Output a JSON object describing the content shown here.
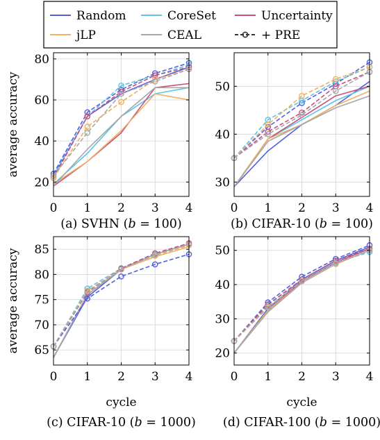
{
  "legend": {
    "entries": [
      {
        "name": "Random",
        "color": "#5060e0",
        "style": "solid"
      },
      {
        "name": "CoreSet",
        "color": "#5cc4ea",
        "style": "solid"
      },
      {
        "name": "Uncertainty",
        "color": "#c9507a",
        "style": "solid"
      },
      {
        "name": "jLP",
        "color": "#efb060",
        "style": "solid"
      },
      {
        "name": "CEAL",
        "color": "#a8a8a8",
        "style": "solid"
      },
      {
        "name": "+ PRE",
        "color": "#333333",
        "style": "dashed-marker"
      }
    ]
  },
  "chart_data": [
    {
      "id": "a",
      "type": "line",
      "caption": "(a) SVHN (b = 100)",
      "xlabel": "",
      "ylabel": "average accuracy",
      "x": [
        0,
        1,
        2,
        3,
        4
      ],
      "xlim": [
        0,
        4
      ],
      "ylim": [
        13,
        83
      ],
      "yticks": [
        20,
        40,
        60,
        80
      ],
      "series": [
        {
          "name": "Random",
          "color": "#5060e0",
          "style": "solid",
          "values": [
            23,
            52,
            63,
            70,
            76
          ]
        },
        {
          "name": "CoreSet",
          "color": "#5cc4ea",
          "style": "solid",
          "values": [
            19,
            34,
            52,
            63,
            66
          ]
        },
        {
          "name": "Uncertainty",
          "color": "#c9507a",
          "style": "solid",
          "values": [
            18,
            30,
            44,
            66,
            68
          ]
        },
        {
          "name": "jLP",
          "color": "#efb060",
          "style": "solid",
          "values": [
            19,
            30,
            45,
            63,
            60
          ]
        },
        {
          "name": "CEAL",
          "color": "#a8a8a8",
          "style": "solid",
          "values": [
            18,
            36,
            52,
            66,
            66
          ]
        },
        {
          "name": "Random + PRE",
          "color": "#5060e0",
          "style": "dashed",
          "values": [
            24,
            54,
            65,
            73,
            78
          ]
        },
        {
          "name": "CoreSet + PRE",
          "color": "#5cc4ea",
          "style": "dashed",
          "values": [
            23,
            52,
            67,
            72,
            77
          ]
        },
        {
          "name": "Uncertainty + PRE",
          "color": "#c9507a",
          "style": "dashed",
          "values": [
            22,
            52,
            64,
            72,
            76
          ]
        },
        {
          "name": "jLP + PRE",
          "color": "#efb060",
          "style": "dashed",
          "values": [
            22,
            47,
            59,
            70,
            75
          ]
        },
        {
          "name": "CEAL + PRE",
          "color": "#a8a8a8",
          "style": "dashed",
          "values": [
            23,
            44,
            63,
            69,
            75
          ]
        }
      ]
    },
    {
      "id": "b",
      "type": "line",
      "caption": "(b) CIFAR-10 (b = 100)",
      "xlabel": "",
      "ylabel": "",
      "x": [
        0,
        1,
        2,
        3,
        4
      ],
      "xlim": [
        0,
        4
      ],
      "ylim": [
        27,
        57
      ],
      "yticks": [
        30,
        40,
        50
      ],
      "series": [
        {
          "name": "Random",
          "color": "#5060e0",
          "style": "solid",
          "values": [
            29,
            36.5,
            42,
            46,
            51
          ]
        },
        {
          "name": "CoreSet",
          "color": "#5cc4ea",
          "style": "solid",
          "values": [
            29,
            39,
            43,
            47,
            50
          ]
        },
        {
          "name": "Uncertainty",
          "color": "#c9507a",
          "style": "solid",
          "values": [
            29,
            39,
            43.5,
            48,
            50
          ]
        },
        {
          "name": "jLP",
          "color": "#efb060",
          "style": "solid",
          "values": [
            29,
            39,
            42,
            46,
            49
          ]
        },
        {
          "name": "CEAL",
          "color": "#a8a8a8",
          "style": "solid",
          "values": [
            29,
            38.5,
            42,
            45.5,
            48
          ]
        },
        {
          "name": "Random + PRE",
          "color": "#5060e0",
          "style": "dashed",
          "values": [
            35,
            41.5,
            46.5,
            50.5,
            55
          ]
        },
        {
          "name": "CoreSet + PRE",
          "color": "#5cc4ea",
          "style": "dashed",
          "values": [
            35,
            43,
            47,
            51,
            54
          ]
        },
        {
          "name": "Uncertainty + PRE",
          "color": "#c9507a",
          "style": "dashed",
          "values": [
            35,
            40.5,
            44.5,
            50,
            53
          ]
        },
        {
          "name": "jLP + PRE",
          "color": "#efb060",
          "style": "dashed",
          "values": [
            35,
            42,
            48,
            51.5,
            54
          ]
        },
        {
          "name": "CEAL + PRE",
          "color": "#a8a8a8",
          "style": "dashed",
          "values": [
            35,
            40,
            44,
            49,
            53
          ]
        }
      ]
    },
    {
      "id": "c",
      "type": "line",
      "caption": "(c) CIFAR-10 (b = 1000)",
      "xlabel": "cycle",
      "ylabel": "average accuracy",
      "x": [
        0,
        1,
        2,
        3,
        4
      ],
      "xlim": [
        0,
        4
      ],
      "ylim": [
        62,
        87.5
      ],
      "yticks": [
        65,
        70,
        75,
        80,
        85
      ],
      "series": [
        {
          "name": "Random",
          "color": "#5060e0",
          "style": "solid",
          "values": [
            63.5,
            75.5,
            81,
            84,
            86
          ]
        },
        {
          "name": "CoreSet",
          "color": "#5cc4ea",
          "style": "solid",
          "values": [
            63.5,
            76,
            81,
            84,
            86
          ]
        },
        {
          "name": "Uncertainty",
          "color": "#c9507a",
          "style": "solid",
          "values": [
            63.5,
            76,
            81,
            84,
            86
          ]
        },
        {
          "name": "jLP",
          "color": "#efb060",
          "style": "solid",
          "values": [
            63.5,
            76,
            81,
            83.5,
            85.5
          ]
        },
        {
          "name": "CEAL",
          "color": "#a8a8a8",
          "style": "solid",
          "values": [
            63.5,
            76,
            81,
            84,
            86
          ]
        },
        {
          "name": "Random + PRE",
          "color": "#5060e0",
          "style": "dashed",
          "values": [
            65.7,
            75.2,
            79.6,
            82,
            84
          ]
        },
        {
          "name": "CoreSet + PRE",
          "color": "#5cc4ea",
          "style": "dashed",
          "values": [
            65.7,
            77.2,
            81.2,
            84,
            86
          ]
        },
        {
          "name": "Uncertainty + PRE",
          "color": "#c9507a",
          "style": "dashed",
          "values": [
            65.7,
            76.4,
            81.2,
            84.2,
            86.2
          ]
        },
        {
          "name": "jLP + PRE",
          "color": "#efb060",
          "style": "dashed",
          "values": [
            65.7,
            76.8,
            81,
            83.7,
            85.8
          ]
        },
        {
          "name": "CEAL + PRE",
          "color": "#a8a8a8",
          "style": "dashed",
          "values": [
            65.7,
            76.6,
            81,
            83.9,
            86
          ]
        }
      ]
    },
    {
      "id": "d",
      "type": "line",
      "caption": "(d) CIFAR-100 (b = 1000)",
      "xlabel": "cycle",
      "ylabel": "",
      "x": [
        0,
        1,
        2,
        3,
        4
      ],
      "xlim": [
        0,
        4
      ],
      "ylim": [
        16.5,
        54
      ],
      "yticks": [
        20,
        30,
        40,
        50
      ],
      "series": [
        {
          "name": "Random",
          "color": "#5060e0",
          "style": "solid",
          "values": [
            20,
            33,
            41.5,
            47,
            51
          ]
        },
        {
          "name": "CoreSet",
          "color": "#5cc4ea",
          "style": "solid",
          "values": [
            20,
            32.5,
            41,
            46.5,
            50.5
          ]
        },
        {
          "name": "Uncertainty",
          "color": "#c9507a",
          "style": "solid",
          "values": [
            20,
            32.5,
            41,
            46.5,
            50.5
          ]
        },
        {
          "name": "jLP",
          "color": "#efb060",
          "style": "solid",
          "values": [
            20,
            32.5,
            40.5,
            46,
            50
          ]
        },
        {
          "name": "CEAL",
          "color": "#a8a8a8",
          "style": "solid",
          "values": [
            20,
            32,
            40.5,
            46,
            50
          ]
        },
        {
          "name": "Random + PRE",
          "color": "#5060e0",
          "style": "dashed",
          "values": [
            23.5,
            34.8,
            42.3,
            47.5,
            51.5
          ]
        },
        {
          "name": "CoreSet + PRE",
          "color": "#5cc4ea",
          "style": "dashed",
          "values": [
            23.5,
            34,
            41.5,
            46.5,
            49.5
          ]
        },
        {
          "name": "Uncertainty + PRE",
          "color": "#c9507a",
          "style": "dashed",
          "values": [
            23.5,
            34.2,
            41.5,
            47,
            50.5
          ]
        },
        {
          "name": "jLP + PRE",
          "color": "#efb060",
          "style": "dashed",
          "values": [
            23.5,
            33.5,
            41,
            46,
            50
          ]
        },
        {
          "name": "CEAL + PRE",
          "color": "#a8a8a8",
          "style": "dashed",
          "values": [
            23.5,
            33.3,
            41,
            46.2,
            50
          ]
        }
      ]
    }
  ]
}
